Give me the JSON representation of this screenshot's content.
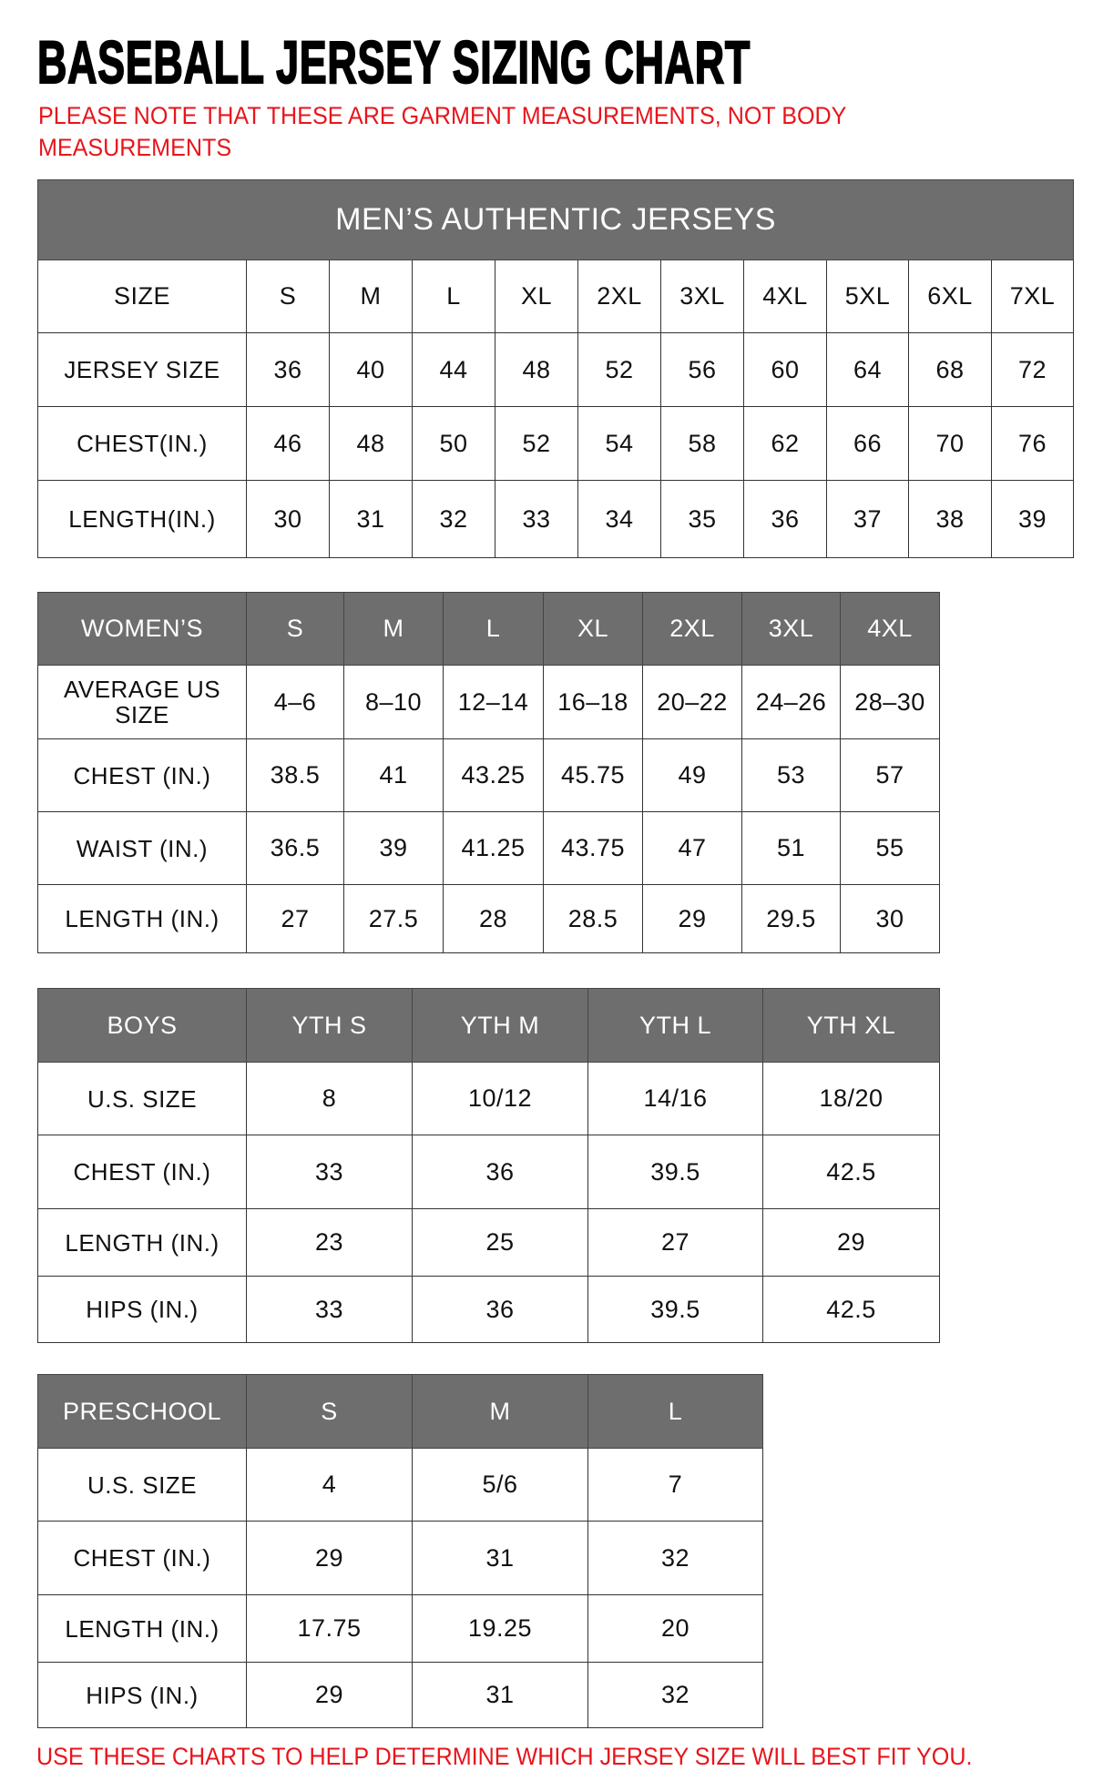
{
  "title": "BASEBALL JERSEY SIZING CHART",
  "note": "PLEASE NOTE THAT THESE ARE GARMENT MEASUREMENTS, NOT BODY MEASUREMENTS",
  "footer": "USE THESE CHARTS TO HELP DETERMINE WHICH JERSEY SIZE WILL BEST FIT YOU.",
  "colors": {
    "header_bg": "#6e6e6e",
    "note_red": "#e8141b"
  },
  "tables": [
    {
      "id": "mens",
      "banner": "MEN’S AUTHENTIC JERSEYS",
      "header_shaded": false,
      "header": [
        "SIZE",
        "S",
        "M",
        "L",
        "XL",
        "2XL",
        "3XL",
        "4XL",
        "5XL",
        "6XL",
        "7XL"
      ],
      "rows": [
        [
          "JERSEY SIZE",
          "36",
          "40",
          "44",
          "48",
          "52",
          "56",
          "60",
          "64",
          "68",
          "72"
        ],
        [
          "CHEST(IN.)",
          "46",
          "48",
          "50",
          "52",
          "54",
          "58",
          "62",
          "66",
          "70",
          "76"
        ],
        [
          "LENGTH(IN.)",
          "30",
          "31",
          "32",
          "33",
          "34",
          "35",
          "36",
          "37",
          "38",
          "39"
        ]
      ]
    },
    {
      "id": "womens",
      "header_shaded": true,
      "header": [
        "WOMEN’S",
        "S",
        "M",
        "L",
        "XL",
        "2XL",
        "3XL",
        "4XL"
      ],
      "rows": [
        [
          "AVERAGE US SIZE",
          "4–6",
          "8–10",
          "12–14",
          "16–18",
          "20–22",
          "24–26",
          "28–30"
        ],
        [
          "CHEST (IN.)",
          "38.5",
          "41",
          "43.25",
          "45.75",
          "49",
          "53",
          "57"
        ],
        [
          "WAIST (IN.)",
          "36.5",
          "39",
          "41.25",
          "43.75",
          "47",
          "51",
          "55"
        ],
        [
          "LENGTH (IN.)",
          "27",
          "27.5",
          "28",
          "28.5",
          "29",
          "29.5",
          "30"
        ]
      ]
    },
    {
      "id": "boys",
      "header_shaded": true,
      "header": [
        "BOYS",
        "YTH S",
        "YTH M",
        "YTH L",
        "YTH XL"
      ],
      "rows": [
        [
          "U.S. SIZE",
          "8",
          "10/12",
          "14/16",
          "18/20"
        ],
        [
          "CHEST (IN.)",
          "33",
          "36",
          "39.5",
          "42.5"
        ],
        [
          "LENGTH (IN.)",
          "23",
          "25",
          "27",
          "29"
        ],
        [
          "HIPS (IN.)",
          "33",
          "36",
          "39.5",
          "42.5"
        ]
      ]
    },
    {
      "id": "preschool",
      "header_shaded": true,
      "header": [
        "PRESCHOOL",
        "S",
        "M",
        "L"
      ],
      "rows": [
        [
          "U.S. SIZE",
          "4",
          "5/6",
          "7"
        ],
        [
          "CHEST (IN.)",
          "29",
          "31",
          "32"
        ],
        [
          "LENGTH (IN.)",
          "17.75",
          "19.25",
          "20"
        ],
        [
          "HIPS (IN.)",
          "29",
          "31",
          "32"
        ]
      ]
    }
  ]
}
